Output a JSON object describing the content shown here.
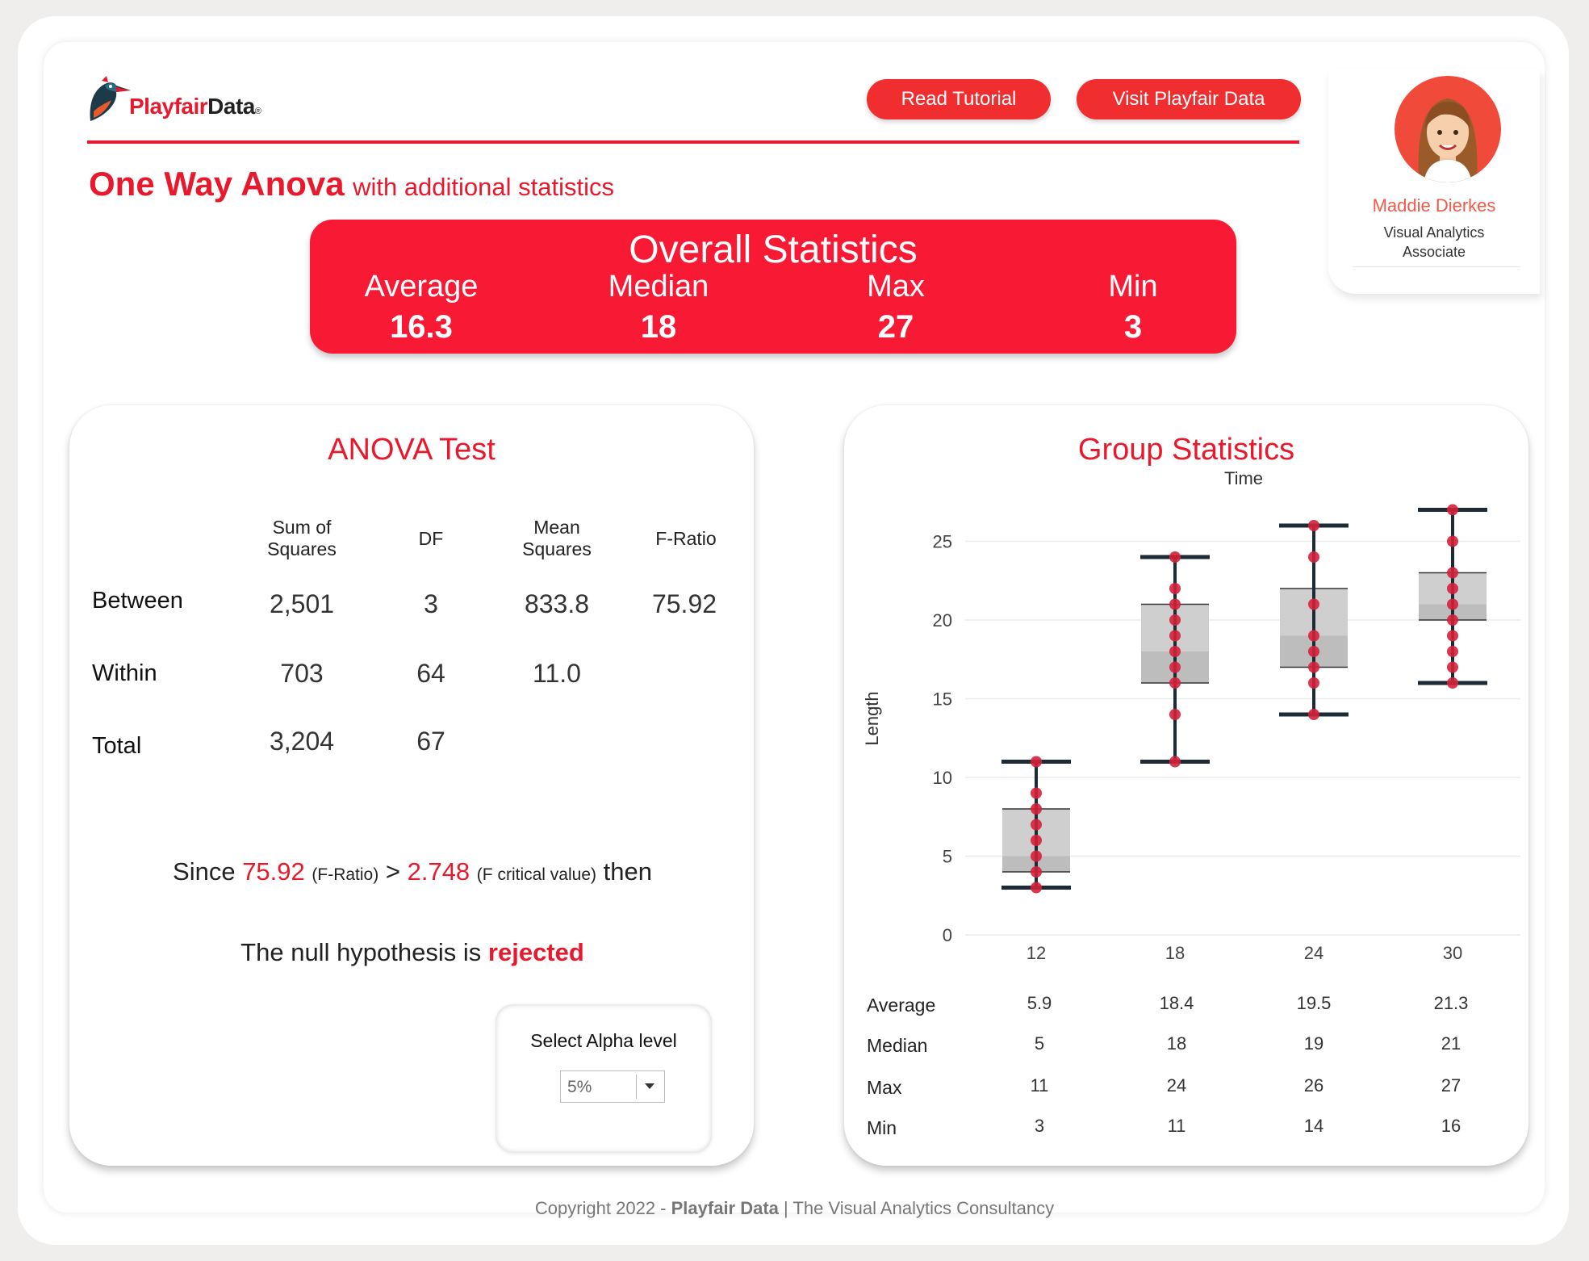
{
  "header": {
    "logo_text_red": "Playfair",
    "logo_text_dark": "Data",
    "logo_registered": "®",
    "buttons": {
      "read_tutorial": "Read Tutorial",
      "visit": "Visit Playfair Data"
    },
    "title": "One Way Anova",
    "subtitle": "with additional statistics"
  },
  "profile": {
    "name": "Maddie Dierkes",
    "role_line1": "Visual Analytics",
    "role_line2": "Associate"
  },
  "overall": {
    "title": "Overall Statistics",
    "labels": [
      "Average",
      "Median",
      "Max",
      "Min"
    ],
    "values": [
      "16.3",
      "18",
      "27",
      "3"
    ]
  },
  "anova": {
    "title": "ANOVA Test",
    "headers": [
      [
        "Sum of",
        "Squares"
      ],
      [
        "DF"
      ],
      [
        "Mean",
        "Squares"
      ],
      [
        "F-Ratio"
      ]
    ],
    "rows": [
      {
        "label": "Between",
        "cells": [
          "2,501",
          "3",
          "833.8",
          "75.92"
        ]
      },
      {
        "label": "Within",
        "cells": [
          "703",
          "64",
          "11.0",
          ""
        ]
      },
      {
        "label": "Total",
        "cells": [
          "3,204",
          "67",
          "",
          ""
        ]
      }
    ],
    "conclusion": {
      "since": "Since",
      "f_ratio": "75.92",
      "f_ratio_note": "(F-Ratio)",
      "gt": ">",
      "critical": "2.748",
      "critical_note": "(F critical value)",
      "then": "then",
      "null_text": "The null hypothesis is",
      "null_result": "rejected"
    },
    "alpha": {
      "label": "Select Alpha level",
      "value": "5%"
    }
  },
  "group_stats": {
    "title": "Group Statistics",
    "stat_labels": [
      "Average",
      "Median",
      "Max",
      "Min"
    ],
    "columns": [
      {
        "values": [
          "5.9",
          "5",
          "11",
          "3"
        ]
      },
      {
        "values": [
          "18.4",
          "18",
          "24",
          "11"
        ]
      },
      {
        "values": [
          "19.5",
          "19",
          "26",
          "14"
        ]
      },
      {
        "values": [
          "21.3",
          "21",
          "27",
          "16"
        ]
      }
    ]
  },
  "chart_data": {
    "type": "boxplot",
    "title": "",
    "xlabel": "Time",
    "ylabel": "Length",
    "ylim": [
      0,
      28
    ],
    "yticks": [
      0,
      5,
      10,
      15,
      20,
      25
    ],
    "categories": [
      "12",
      "18",
      "24",
      "30"
    ],
    "boxes": [
      {
        "min": 3,
        "q1": 4,
        "median": 5,
        "q3": 8,
        "max": 11
      },
      {
        "min": 11,
        "q1": 16,
        "median": 18,
        "q3": 21,
        "max": 24
      },
      {
        "min": 14,
        "q1": 17,
        "median": 19,
        "q3": 22,
        "max": 26
      },
      {
        "min": 16,
        "q1": 20,
        "median": 21,
        "q3": 23,
        "max": 27
      }
    ],
    "points": [
      [
        3,
        4,
        5,
        6,
        7,
        8,
        9,
        11
      ],
      [
        11,
        14,
        16,
        17,
        18,
        19,
        20,
        21,
        22,
        24
      ],
      [
        14,
        16,
        17,
        18,
        19,
        21,
        24,
        26
      ],
      [
        16,
        17,
        18,
        19,
        20,
        21,
        22,
        23,
        25,
        27
      ]
    ],
    "colors": {
      "box": "#cfcfcf",
      "box_lower": "#bdbdbd",
      "whisker": "#1c2b36",
      "point": "#d4213b",
      "grid": "#ececec"
    }
  },
  "footer": {
    "prefix": "Copyright 2022 -",
    "brand": "Playfair Data",
    "suffix": "| The Visual Analytics Consultancy"
  }
}
